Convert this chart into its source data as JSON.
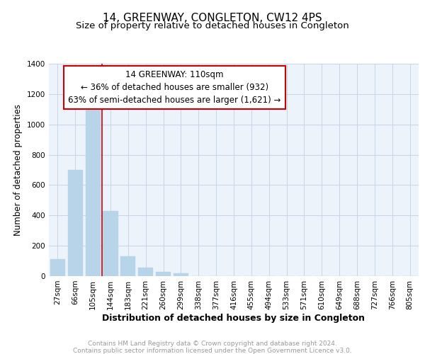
{
  "title": "14, GREENWAY, CONGLETON, CW12 4PS",
  "subtitle": "Size of property relative to detached houses in Congleton",
  "xlabel": "Distribution of detached houses by size in Congleton",
  "ylabel": "Number of detached properties",
  "bar_labels": [
    "27sqm",
    "66sqm",
    "105sqm",
    "144sqm",
    "183sqm",
    "221sqm",
    "260sqm",
    "299sqm",
    "338sqm",
    "377sqm",
    "416sqm",
    "455sqm",
    "494sqm",
    "533sqm",
    "571sqm",
    "610sqm",
    "649sqm",
    "688sqm",
    "727sqm",
    "766sqm",
    "805sqm"
  ],
  "bar_values": [
    110,
    700,
    1120,
    430,
    130,
    55,
    30,
    18,
    0,
    0,
    0,
    0,
    0,
    0,
    0,
    0,
    0,
    0,
    0,
    0,
    0
  ],
  "bar_color": "#b8d4e8",
  "vline_x_idx": 2,
  "vline_color": "#cc0000",
  "annotation_line1": "14 GREENWAY: 110sqm",
  "annotation_line2": "← 36% of detached houses are smaller (932)",
  "annotation_line3": "63% of semi-detached houses are larger (1,621) →",
  "annotation_box_color": "#ffffff",
  "annotation_box_edgecolor": "#cc0000",
  "ylim": [
    0,
    1400
  ],
  "yticks": [
    0,
    200,
    400,
    600,
    800,
    1000,
    1200,
    1400
  ],
  "footer_line1": "Contains HM Land Registry data © Crown copyright and database right 2024.",
  "footer_line2": "Contains public sector information licensed under the Open Government Licence v3.0.",
  "title_fontsize": 11,
  "subtitle_fontsize": 9.5,
  "xlabel_fontsize": 9,
  "ylabel_fontsize": 8.5,
  "tick_fontsize": 7.5,
  "annotation_fontsize": 8.5,
  "footer_fontsize": 6.5,
  "bg_color": "#edf3fb",
  "grid_color": "#c5d5e8"
}
